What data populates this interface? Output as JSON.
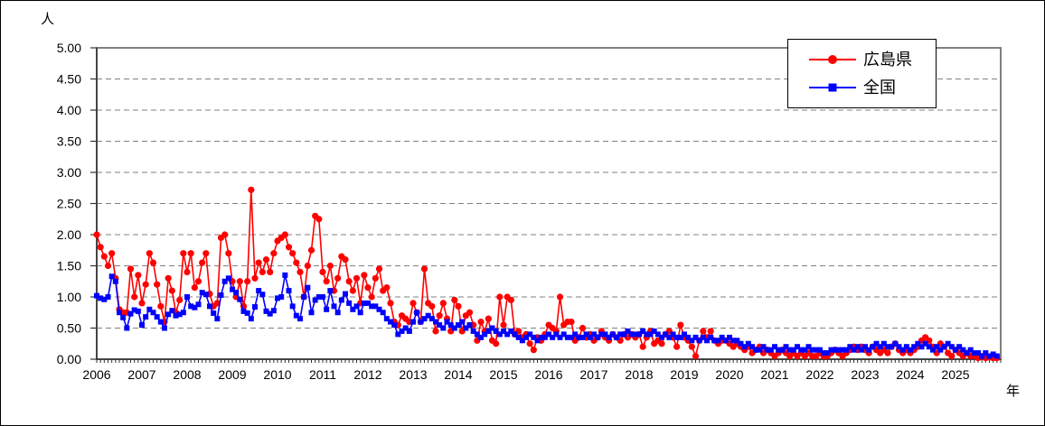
{
  "figure": {
    "y_unit_label": "人",
    "x_unit_label": "年"
  },
  "legend": {
    "items": [
      {
        "label": "広島県",
        "color": "#ff0000",
        "marker": "circle"
      },
      {
        "label": "全国",
        "color": "#0000ff",
        "marker": "square"
      }
    ]
  },
  "colors": {
    "series_hiroshima": "#ff0000",
    "series_national": "#0000ff",
    "gridline": "#808080",
    "plot_border": "#808080",
    "axis": "#333333",
    "text": "#000000",
    "background": "#ffffff"
  },
  "chart_data": {
    "type": "line",
    "title": "",
    "xlabel": "年",
    "ylabel": "人",
    "x_frequency": "monthly",
    "x_start_year": 2006,
    "x_end_year": 2025,
    "x_tick_labels": [
      "2006",
      "2007",
      "2008",
      "2009",
      "2010",
      "2011",
      "2012",
      "2013",
      "2014",
      "2015",
      "2016",
      "2017",
      "2018",
      "2019",
      "2020",
      "2021",
      "2022",
      "2023",
      "2024",
      "2025"
    ],
    "ylim": [
      0,
      5
    ],
    "ytick_step": 0.5,
    "ytick_labels": [
      "0.00",
      "0.50",
      "1.00",
      "1.50",
      "2.00",
      "2.50",
      "3.00",
      "3.50",
      "4.00",
      "4.50",
      "5.00"
    ],
    "grid": "horizontal-dashed",
    "legend_position": "top-right-inside",
    "series": [
      {
        "name": "広島県",
        "color": "#ff0000",
        "marker": "circle",
        "values": [
          2.0,
          1.8,
          1.65,
          1.5,
          1.7,
          1.3,
          0.8,
          0.75,
          0.75,
          1.45,
          1.0,
          1.35,
          0.9,
          1.2,
          1.7,
          1.55,
          1.2,
          0.85,
          0.6,
          1.3,
          1.1,
          0.75,
          0.95,
          1.7,
          1.4,
          1.7,
          1.15,
          1.25,
          1.55,
          1.7,
          1.05,
          0.85,
          0.9,
          1.95,
          2.0,
          1.7,
          1.25,
          1.0,
          1.25,
          0.85,
          1.25,
          2.72,
          1.3,
          1.55,
          1.4,
          1.6,
          1.4,
          1.7,
          1.9,
          1.95,
          2.0,
          1.8,
          1.7,
          1.55,
          1.4,
          1.0,
          1.5,
          1.75,
          2.3,
          2.25,
          1.4,
          1.25,
          1.5,
          1.1,
          1.3,
          1.65,
          1.6,
          1.25,
          1.1,
          1.3,
          0.9,
          1.35,
          1.15,
          1.0,
          1.3,
          1.45,
          1.1,
          1.15,
          0.9,
          0.6,
          0.55,
          0.7,
          0.65,
          0.6,
          0.9,
          0.75,
          0.6,
          1.45,
          0.9,
          0.85,
          0.45,
          0.7,
          0.9,
          0.65,
          0.45,
          0.95,
          0.85,
          0.45,
          0.7,
          0.75,
          0.55,
          0.3,
          0.6,
          0.45,
          0.65,
          0.3,
          0.25,
          1.0,
          0.55,
          1.0,
          0.95,
          0.4,
          0.45,
          0.35,
          0.4,
          0.25,
          0.15,
          0.35,
          0.3,
          0.4,
          0.55,
          0.5,
          0.45,
          1.0,
          0.55,
          0.6,
          0.6,
          0.3,
          0.35,
          0.5,
          0.35,
          0.4,
          0.3,
          0.35,
          0.45,
          0.35,
          0.3,
          0.4,
          0.35,
          0.3,
          0.4,
          0.35,
          0.4,
          0.35,
          0.4,
          0.2,
          0.35,
          0.45,
          0.25,
          0.3,
          0.25,
          0.4,
          0.45,
          0.35,
          0.2,
          0.55,
          0.35,
          0.3,
          0.2,
          0.05,
          0.3,
          0.45,
          0.35,
          0.45,
          0.3,
          0.25,
          0.3,
          0.3,
          0.25,
          0.2,
          0.25,
          0.2,
          0.15,
          0.2,
          0.1,
          0.15,
          0.2,
          0.1,
          0.15,
          0.1,
          0.05,
          0.1,
          0.15,
          0.1,
          0.05,
          0.1,
          0.05,
          0.1,
          0.05,
          0.1,
          0.05,
          0.05,
          0.1,
          0.05,
          0.05,
          0.1,
          0.15,
          0.1,
          0.05,
          0.1,
          0.15,
          0.2,
          0.15,
          0.2,
          0.15,
          0.1,
          0.2,
          0.15,
          0.1,
          0.15,
          0.1,
          0.2,
          0.25,
          0.15,
          0.1,
          0.15,
          0.1,
          0.15,
          0.2,
          0.3,
          0.35,
          0.3,
          0.2,
          0.1,
          0.25,
          0.2,
          0.1,
          0.05,
          0.15,
          0.1,
          0.05,
          0.1,
          0.05,
          0.05,
          0.02,
          0.05,
          0.02,
          0.03,
          0.02,
          0.02
        ]
      },
      {
        "name": "全国",
        "color": "#0000ff",
        "marker": "square",
        "values": [
          1.02,
          0.98,
          0.96,
          1.0,
          1.33,
          1.25,
          0.75,
          0.67,
          0.5,
          0.73,
          0.79,
          0.77,
          0.55,
          0.68,
          0.8,
          0.75,
          0.68,
          0.6,
          0.5,
          0.72,
          0.78,
          0.7,
          0.72,
          0.75,
          1.0,
          0.85,
          0.83,
          0.88,
          1.07,
          1.04,
          0.85,
          0.74,
          0.65,
          1.03,
          1.25,
          1.3,
          1.12,
          1.07,
          0.96,
          0.77,
          0.74,
          0.65,
          0.84,
          1.1,
          1.04,
          0.77,
          0.73,
          0.78,
          0.98,
          1.0,
          1.35,
          1.1,
          0.85,
          0.7,
          0.65,
          1.0,
          1.15,
          0.75,
          0.95,
          1.0,
          1.0,
          0.8,
          1.1,
          0.85,
          0.75,
          0.95,
          1.05,
          0.9,
          0.8,
          0.85,
          0.75,
          0.9,
          0.9,
          0.85,
          0.85,
          0.8,
          0.75,
          0.65,
          0.6,
          0.55,
          0.4,
          0.45,
          0.5,
          0.45,
          0.6,
          0.75,
          0.6,
          0.65,
          0.7,
          0.65,
          0.6,
          0.55,
          0.5,
          0.6,
          0.55,
          0.5,
          0.55,
          0.6,
          0.5,
          0.55,
          0.45,
          0.4,
          0.35,
          0.4,
          0.45,
          0.5,
          0.45,
          0.4,
          0.45,
          0.4,
          0.45,
          0.4,
          0.35,
          0.3,
          0.35,
          0.4,
          0.35,
          0.3,
          0.35,
          0.35,
          0.4,
          0.35,
          0.4,
          0.35,
          0.4,
          0.35,
          0.35,
          0.4,
          0.35,
          0.35,
          0.4,
          0.35,
          0.4,
          0.35,
          0.4,
          0.4,
          0.35,
          0.4,
          0.35,
          0.4,
          0.4,
          0.45,
          0.4,
          0.4,
          0.4,
          0.45,
          0.4,
          0.4,
          0.45,
          0.4,
          0.35,
          0.4,
          0.35,
          0.4,
          0.35,
          0.35,
          0.4,
          0.35,
          0.3,
          0.35,
          0.3,
          0.35,
          0.3,
          0.35,
          0.3,
          0.3,
          0.35,
          0.3,
          0.35,
          0.3,
          0.3,
          0.25,
          0.2,
          0.25,
          0.2,
          0.15,
          0.15,
          0.2,
          0.15,
          0.15,
          0.2,
          0.15,
          0.15,
          0.2,
          0.15,
          0.15,
          0.2,
          0.15,
          0.15,
          0.2,
          0.15,
          0.15,
          0.15,
          0.1,
          0.1,
          0.15,
          0.15,
          0.15,
          0.15,
          0.15,
          0.2,
          0.15,
          0.2,
          0.15,
          0.2,
          0.15,
          0.2,
          0.25,
          0.2,
          0.25,
          0.2,
          0.2,
          0.25,
          0.2,
          0.15,
          0.2,
          0.15,
          0.2,
          0.25,
          0.2,
          0.25,
          0.2,
          0.15,
          0.2,
          0.15,
          0.2,
          0.25,
          0.2,
          0.15,
          0.2,
          0.15,
          0.1,
          0.15,
          0.1,
          0.1,
          0.05,
          0.1,
          0.05,
          0.08,
          0.05
        ]
      }
    ]
  }
}
